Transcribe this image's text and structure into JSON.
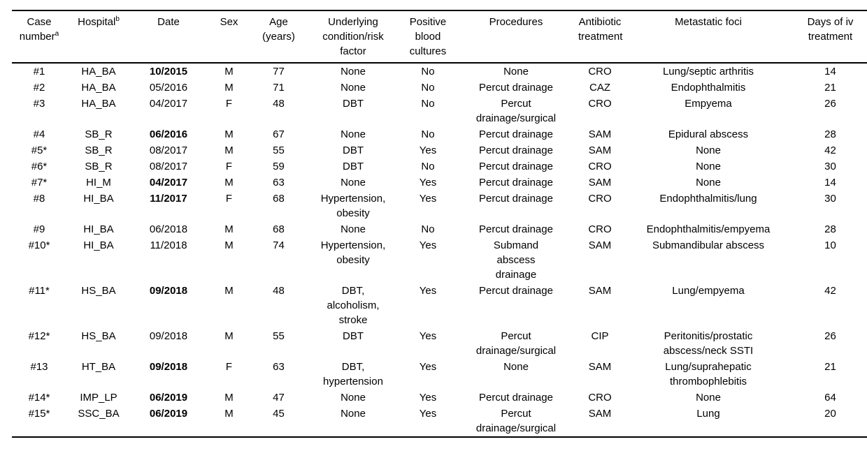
{
  "table": {
    "columns": [
      {
        "key": "case",
        "label": "Case\nnumber",
        "sup": "a"
      },
      {
        "key": "hospital",
        "label": "Hospital",
        "sup": "b"
      },
      {
        "key": "date",
        "label": "Date"
      },
      {
        "key": "sex",
        "label": "Sex"
      },
      {
        "key": "age",
        "label": "Age\n(years)"
      },
      {
        "key": "condition",
        "label": "Underlying\ncondition/risk\nfactor"
      },
      {
        "key": "cultures",
        "label": "Positive\nblood\ncultures"
      },
      {
        "key": "procedures",
        "label": "Procedures"
      },
      {
        "key": "antibiotic",
        "label": "Antibiotic\ntreatment"
      },
      {
        "key": "foci",
        "label": "Metastatic foci"
      },
      {
        "key": "days",
        "label": "Days of iv\ntreatment"
      }
    ],
    "rows": [
      {
        "case": "#1",
        "hospital": "HA_BA",
        "date": "10/2015",
        "date_bold": true,
        "sex": "M",
        "age": 77,
        "condition": "None",
        "cultures": "No",
        "procedures": "None",
        "antibiotic": "CRO",
        "foci": "Lung/septic arthritis",
        "days": 14
      },
      {
        "case": "#2",
        "hospital": "HA_BA",
        "date": "05/2016",
        "date_bold": false,
        "sex": "M",
        "age": 71,
        "condition": "None",
        "cultures": "No",
        "procedures": "Percut drainage",
        "antibiotic": "CAZ",
        "foci": "Endophthalmitis",
        "days": 21
      },
      {
        "case": "#3",
        "hospital": "HA_BA",
        "date": "04/2017",
        "date_bold": false,
        "sex": "F",
        "age": 48,
        "condition": "DBT",
        "cultures": "No",
        "procedures": "Percut\ndrainage/surgical",
        "antibiotic": "CRO",
        "foci": "Empyema",
        "days": 26
      },
      {
        "case": "#4",
        "hospital": "SB_R",
        "date": "06/2016",
        "date_bold": true,
        "sex": "M",
        "age": 67,
        "condition": "None",
        "cultures": "No",
        "procedures": "Percut drainage",
        "antibiotic": "SAM",
        "foci": "Epidural abscess",
        "days": 28
      },
      {
        "case": "#5*",
        "hospital": "SB_R",
        "date": "08/2017",
        "date_bold": false,
        "sex": "M",
        "age": 55,
        "condition": "DBT",
        "cultures": "Yes",
        "procedures": "Percut drainage",
        "antibiotic": "SAM",
        "foci": "None",
        "days": 42
      },
      {
        "case": "#6*",
        "hospital": "SB_R",
        "date": "08/2017",
        "date_bold": false,
        "sex": "F",
        "age": 59,
        "condition": "DBT",
        "cultures": "No",
        "procedures": "Percut drainage",
        "antibiotic": "CRO",
        "foci": "None",
        "days": 30
      },
      {
        "case": "#7*",
        "hospital": "HI_M",
        "date": "04/2017",
        "date_bold": true,
        "sex": "M",
        "age": 63,
        "condition": "None",
        "cultures": "Yes",
        "procedures": "Percut drainage",
        "antibiotic": "SAM",
        "foci": "None",
        "days": 14
      },
      {
        "case": "#8",
        "hospital": "HI_BA",
        "date": "11/2017",
        "date_bold": true,
        "sex": "F",
        "age": 68,
        "condition": "Hypertension,\nobesity",
        "cultures": "Yes",
        "procedures": "Percut drainage",
        "antibiotic": "CRO",
        "foci": "Endophthalmitis/lung",
        "days": 30
      },
      {
        "case": "#9",
        "hospital": "HI_BA",
        "date": "06/2018",
        "date_bold": false,
        "sex": "M",
        "age": 68,
        "condition": "None",
        "cultures": "No",
        "procedures": "Percut drainage",
        "antibiotic": "CRO",
        "foci": "Endophthalmitis/empyema",
        "days": 28
      },
      {
        "case": "#10*",
        "hospital": "HI_BA",
        "date": "11/2018",
        "date_bold": false,
        "sex": "M",
        "age": 74,
        "condition": "Hypertension,\nobesity",
        "cultures": "Yes",
        "procedures": "Submand\nabscess\ndrainage",
        "antibiotic": "SAM",
        "foci": "Submandibular abscess",
        "days": 10
      },
      {
        "case": "#11*",
        "hospital": "HS_BA",
        "date": "09/2018",
        "date_bold": true,
        "sex": "M",
        "age": 48,
        "condition": "DBT,\nalcoholism,\nstroke",
        "cultures": "Yes",
        "procedures": "Percut drainage",
        "antibiotic": "SAM",
        "foci": "Lung/empyema",
        "days": 42
      },
      {
        "case": "#12*",
        "hospital": "HS_BA",
        "date": "09/2018",
        "date_bold": false,
        "sex": "M",
        "age": 55,
        "condition": "DBT",
        "cultures": "Yes",
        "procedures": "Percut\ndrainage/surgical",
        "antibiotic": "CIP",
        "foci": "Peritonitis/prostatic\nabscess/neck SSTI",
        "days": 26
      },
      {
        "case": "#13",
        "hospital": "HT_BA",
        "date": "09/2018",
        "date_bold": true,
        "sex": "F",
        "age": 63,
        "condition": "DBT,\nhypertension",
        "cultures": "Yes",
        "procedures": "None",
        "antibiotic": "SAM",
        "foci": "Lung/suprahepatic\nthrombophlebitis",
        "days": 21
      },
      {
        "case": "#14*",
        "hospital": "IMP_LP",
        "date": "06/2019",
        "date_bold": true,
        "sex": "M",
        "age": 47,
        "condition": "None",
        "cultures": "Yes",
        "procedures": "Percut drainage",
        "antibiotic": "CRO",
        "foci": "None",
        "days": 64
      },
      {
        "case": "#15*",
        "hospital": "SSC_BA",
        "date": "06/2019",
        "date_bold": true,
        "sex": "M",
        "age": 45,
        "condition": "None",
        "cultures": "Yes",
        "procedures": "Percut\ndrainage/surgical",
        "antibiotic": "SAM",
        "foci": "Lung",
        "days": 20
      }
    ]
  }
}
